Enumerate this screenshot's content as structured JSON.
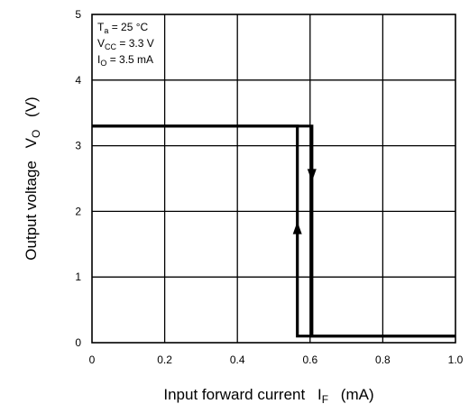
{
  "chart_data": {
    "type": "line",
    "xlabel": {
      "main": "Input forward current",
      "symbol": "I",
      "sub": "F",
      "unit": "(mA)"
    },
    "ylabel": {
      "main": "Output voltage",
      "symbol": "V",
      "sub": "O",
      "unit": "(V)"
    },
    "xlim": [
      0,
      1.0
    ],
    "ylim": [
      0,
      5
    ],
    "x_ticks": [
      {
        "value": 0,
        "label": "0"
      },
      {
        "value": 0.2,
        "label": "0.2"
      },
      {
        "value": 0.4,
        "label": "0.4"
      },
      {
        "value": 0.6,
        "label": "0.6"
      },
      {
        "value": 0.8,
        "label": "0.8"
      },
      {
        "value": 1.0,
        "label": "1.0"
      }
    ],
    "y_ticks": [
      {
        "value": 0,
        "label": "0"
      },
      {
        "value": 1,
        "label": "1"
      },
      {
        "value": 2,
        "label": "2"
      },
      {
        "value": 3,
        "label": "3"
      },
      {
        "value": 4,
        "label": "4"
      },
      {
        "value": 5,
        "label": "5"
      }
    ],
    "grid": true,
    "conditions": [
      {
        "sym": "T",
        "sub": "a",
        "rest": " = 25 °C"
      },
      {
        "sym": "V",
        "sub": "CC",
        "rest": " = 3.3 V"
      },
      {
        "sym": "I",
        "sub": "O",
        "rest": " = 3.5 mA"
      }
    ],
    "series": [
      {
        "direction": "increasing",
        "points": [
          [
            0,
            3.3
          ],
          [
            0.565,
            3.3
          ],
          [
            0.565,
            0.1
          ],
          [
            1.0,
            0.1
          ]
        ],
        "arrow_at": [
          0.565,
          1.75
        ],
        "arrow": "up"
      },
      {
        "direction": "decreasing",
        "points": [
          [
            0,
            3.3
          ],
          [
            0.605,
            3.3
          ],
          [
            0.605,
            0.1
          ],
          [
            1.0,
            0.1
          ]
        ],
        "arrow_at": [
          0.605,
          2.55
        ],
        "arrow": "down"
      }
    ],
    "colors": {
      "line": "#000000",
      "grid": "#000000",
      "background": "#ffffff"
    }
  }
}
